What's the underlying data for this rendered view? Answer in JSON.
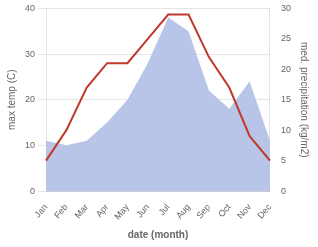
{
  "chart_data": {
    "type": "line",
    "xlabel": "date (month)",
    "ylabel": "max temp (C)",
    "y2label": "med. precipitation (kg/m2)",
    "categories": [
      "Jan",
      "Feb",
      "Mar",
      "Apr",
      "May",
      "Jun",
      "Jul",
      "Aug",
      "Sep",
      "Oct",
      "Nov",
      "Dec"
    ],
    "series": [
      {
        "type": "area",
        "color": "#b8c4e8",
        "values": [
          11,
          10,
          11,
          15,
          20,
          28,
          38,
          35,
          22,
          18,
          24,
          11
        ]
      },
      {
        "type": "line",
        "color": "#c0392b",
        "axis": "y2",
        "values": [
          5,
          10,
          17,
          21,
          21,
          25,
          29,
          29,
          22,
          17,
          9,
          5
        ]
      }
    ],
    "ylim": [
      0,
      40
    ],
    "yticks": [
      0,
      10,
      20,
      30,
      40
    ],
    "y2lim": [
      0,
      30
    ],
    "y2ticks": [
      0,
      5,
      10,
      15,
      20,
      25,
      30
    ],
    "grid": true
  }
}
